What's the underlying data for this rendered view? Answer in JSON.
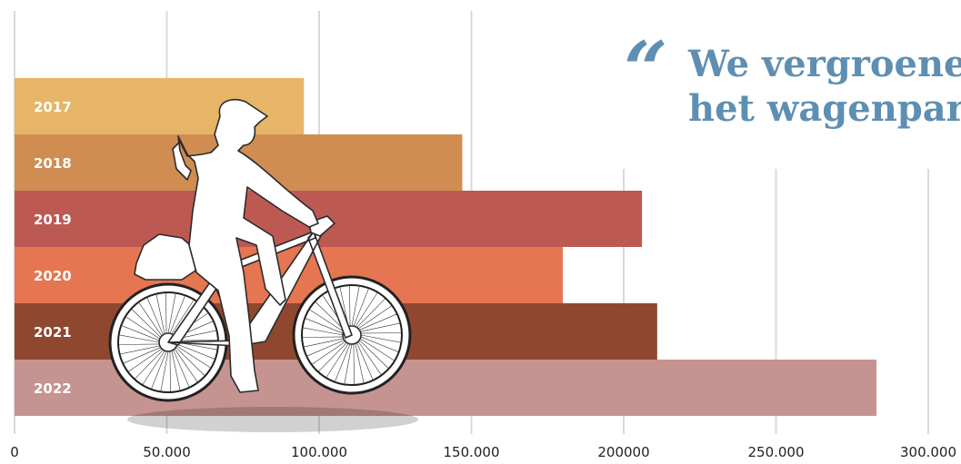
{
  "quote": {
    "mark": "“",
    "line1": "We vergroenen",
    "line2": "het wagenpark"
  },
  "chart_data": {
    "type": "bar",
    "orientation": "horizontal",
    "categories": [
      "2017",
      "2018",
      "2019",
      "2020",
      "2021",
      "2022"
    ],
    "values": [
      95000,
      147000,
      206000,
      180000,
      211000,
      283000
    ],
    "colors": [
      "#e6b567",
      "#d08d52",
      "#bd5953",
      "#e57651",
      "#8f482f",
      "#c59490"
    ],
    "xlim": [
      0,
      300000
    ],
    "xticks": [
      0,
      50000,
      100000,
      150000,
      200000,
      250000,
      300000
    ],
    "xtick_labels": [
      "0",
      "50.000",
      "100.000",
      "150.000",
      "200000",
      "250.000",
      "300.000"
    ],
    "grid": true,
    "title": "",
    "xlabel": "",
    "ylabel": ""
  }
}
